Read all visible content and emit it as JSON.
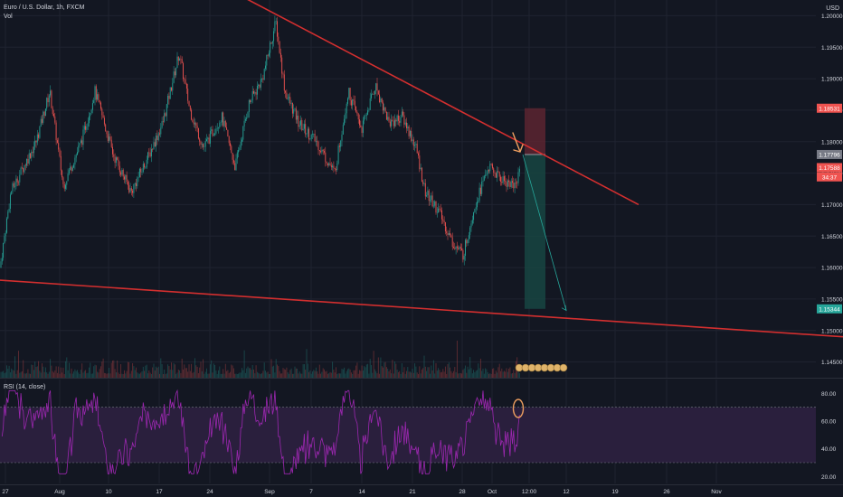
{
  "header": {
    "symbol": "Euro / U.S. Dollar, 1h, FXCM",
    "volume_label": "Vol",
    "currency": "USD",
    "rsi_label": "RSI (14, close)"
  },
  "colors": {
    "background": "#131722",
    "grid": "#1f2330",
    "up": "#26a69a",
    "down": "#ef5350",
    "trendline": "#d32f2f",
    "rsi_line": "#9c27b0",
    "rsi_band": "#2a1f3d",
    "stop_zone": "#5c2530",
    "target_zone": "#174542",
    "annotation": "#f0a060"
  },
  "chart_data": [
    {
      "type": "candlestick",
      "title": "Euro / U.S. Dollar, 1h, FXCM",
      "ylim": [
        1.1425,
        1.2025
      ],
      "y_ticks": [
        1.2,
        1.195,
        1.19,
        1.185,
        1.18,
        1.175,
        1.17,
        1.165,
        1.16,
        1.155,
        1.15,
        1.145
      ],
      "y_tick_labels": [
        "1.20000",
        "1.19500",
        "1.19000",
        "1.18500",
        "1.18000",
        "1.17500",
        "1.17000",
        "1.16500",
        "1.16000",
        "1.15500",
        "1.15000",
        "1.14500"
      ],
      "x_tick_labels": [
        "27",
        "Aug",
        "10",
        "17",
        "24",
        "Sep",
        "7",
        "14",
        "21",
        "28",
        "Oct",
        "12:00",
        "12",
        "19",
        "26",
        "Nov"
      ],
      "price_path": [
        [
          0,
          1.16
        ],
        [
          12,
          1.172
        ],
        [
          40,
          1.18
        ],
        [
          55,
          1.188
        ],
        [
          70,
          1.173
        ],
        [
          90,
          1.18
        ],
        [
          105,
          1.188
        ],
        [
          125,
          1.178
        ],
        [
          145,
          1.172
        ],
        [
          165,
          1.178
        ],
        [
          180,
          1.183
        ],
        [
          198,
          1.194
        ],
        [
          210,
          1.185
        ],
        [
          225,
          1.179
        ],
        [
          245,
          1.184
        ],
        [
          260,
          1.176
        ],
        [
          275,
          1.186
        ],
        [
          290,
          1.19
        ],
        [
          305,
          1.199
        ],
        [
          315,
          1.188
        ],
        [
          330,
          1.183
        ],
        [
          350,
          1.18
        ],
        [
          370,
          1.175
        ],
        [
          385,
          1.188
        ],
        [
          400,
          1.182
        ],
        [
          415,
          1.189
        ],
        [
          430,
          1.183
        ],
        [
          445,
          1.184
        ],
        [
          460,
          1.179
        ],
        [
          470,
          1.172
        ],
        [
          485,
          1.169
        ],
        [
          500,
          1.164
        ],
        [
          512,
          1.162
        ],
        [
          525,
          1.17
        ],
        [
          540,
          1.176
        ],
        [
          555,
          1.174
        ],
        [
          570,
          1.173
        ],
        [
          578,
          1.1779
        ]
      ],
      "price_labels": [
        {
          "name": "stop-level",
          "value": 1.18531,
          "text": "1.18531",
          "color": "#ef5350"
        },
        {
          "name": "entry-level",
          "value": 1.17796,
          "text": "1.17796",
          "color": "#787b86"
        },
        {
          "name": "last-price",
          "value": 1.17588,
          "text": "1.17588",
          "color": "#ef5350"
        },
        {
          "name": "countdown",
          "value": 1.1744,
          "text": "34:37",
          "color": "#ef5350"
        },
        {
          "name": "target-level",
          "value": 1.15344,
          "text": "1.15344",
          "color": "#26a69a"
        }
      ],
      "trendlines": [
        {
          "name": "upper-trendline",
          "points": [
            [
              255,
              1.204
            ],
            [
              706,
              1.17
            ]
          ]
        },
        {
          "name": "lower-trendline",
          "points": [
            [
              0,
              1.158
            ],
            [
              932,
              1.149
            ]
          ]
        }
      ],
      "position_tool": {
        "type": "short",
        "entry": 1.17796,
        "stop": 1.18531,
        "target": 1.15344
      }
    },
    {
      "type": "line",
      "title": "RSI (14, close)",
      "ylim": [
        15,
        90
      ],
      "y_ticks": [
        80,
        60,
        40,
        20
      ],
      "y_tick_labels": [
        "80.00",
        "60.00",
        "40.00",
        "20.00"
      ],
      "bands": [
        70,
        30
      ]
    }
  ]
}
